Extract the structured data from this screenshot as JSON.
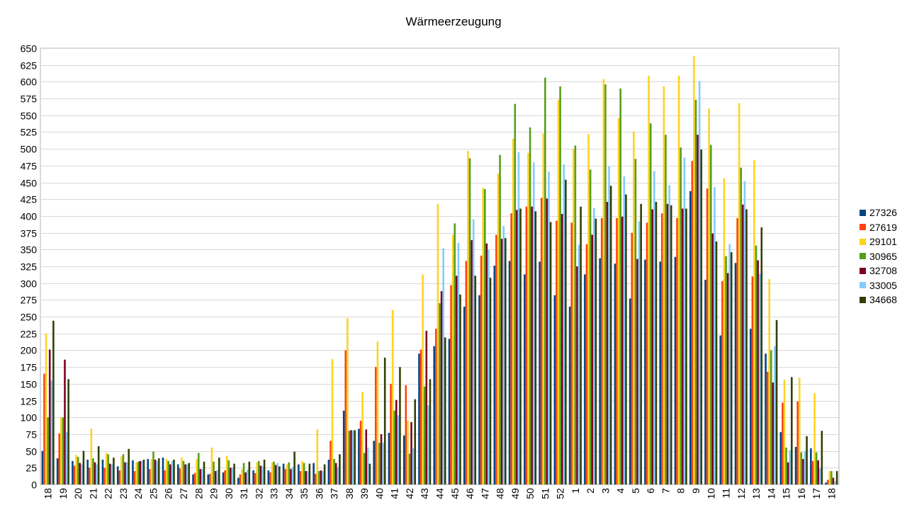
{
  "chart_data": {
    "type": "bar",
    "title": "Wärmeerzeugung",
    "xlabel": "",
    "ylabel": "",
    "ylim": [
      0,
      650
    ],
    "ytick_step": 25,
    "grid": true,
    "legend_position": "right",
    "categories": [
      "18",
      "19",
      "20",
      "21",
      "22",
      "23",
      "24",
      "25",
      "26",
      "27",
      "28",
      "29",
      "30",
      "31",
      "32",
      "33",
      "34",
      "35",
      "36",
      "37",
      "38",
      "39",
      "40",
      "41",
      "42",
      "43",
      "44",
      "45",
      "46",
      "47",
      "48",
      "49",
      "50",
      "51",
      "52",
      "1",
      "2",
      "3",
      "4",
      "5",
      "6",
      "7",
      "8",
      "9",
      "10",
      "11",
      "12",
      "13",
      "14",
      "15",
      "16",
      "17",
      "18"
    ],
    "series": [
      {
        "name": "27326",
        "color": "#004586",
        "values": [
          50,
          39,
          35,
          37,
          37,
          27,
          36,
          38,
          40,
          30,
          15,
          15,
          18,
          10,
          21,
          21,
          31,
          30,
          32,
          37,
          110,
          83,
          65,
          77,
          73,
          195,
          206,
          217,
          265,
          282,
          326,
          333,
          313,
          332,
          282,
          265,
          313,
          337,
          329,
          277,
          335,
          332,
          339,
          437,
          305,
          222,
          330,
          232,
          195,
          78,
          56,
          54,
          3
        ]
      },
      {
        "name": "27619",
        "color": "#ff420e",
        "values": [
          165,
          76,
          28,
          25,
          25,
          21,
          20,
          23,
          21,
          24,
          17,
          16,
          21,
          15,
          17,
          18,
          23,
          20,
          16,
          65,
          200,
          95,
          175,
          150,
          148,
          201,
          232,
          297,
          333,
          341,
          372,
          404,
          414,
          427,
          393,
          390,
          358,
          397,
          397,
          375,
          390,
          404,
          397,
          482,
          441,
          303,
          397,
          310,
          168,
          122,
          124,
          35,
          7
        ]
      },
      {
        "name": "29101",
        "color": "#ffd320",
        "values": [
          225,
          100,
          44,
          83,
          47,
          42,
          33,
          38,
          38,
          40,
          38,
          55,
          43,
          23,
          33,
          33,
          30,
          35,
          82,
          187,
          248,
          138,
          213,
          260,
          95,
          313,
          418,
          372,
          497,
          442,
          463,
          515,
          494,
          523,
          573,
          500,
          522,
          604,
          546,
          526,
          609,
          593,
          609,
          638,
          560,
          456,
          568,
          483,
          306,
          156,
          159,
          136,
          20
        ]
      },
      {
        "name": "30965",
        "color": "#579d1c",
        "values": [
          100,
          100,
          41,
          39,
          45,
          45,
          34,
          49,
          35,
          35,
          47,
          34,
          36,
          32,
          35,
          34,
          33,
          32,
          20,
          38,
          80,
          47,
          62,
          110,
          46,
          146,
          270,
          389,
          486,
          440,
          491,
          567,
          532,
          606,
          593,
          505,
          469,
          596,
          590,
          485,
          538,
          521,
          502,
          573,
          506,
          340,
          472,
          356,
          200,
          55,
          48,
          48,
          20
        ]
      },
      {
        "name": "32708",
        "color": "#7e0021",
        "values": [
          201,
          186,
          32,
          33,
          31,
          33,
          35,
          37,
          30,
          30,
          23,
          20,
          25,
          18,
          28,
          29,
          23,
          20,
          21,
          32,
          81,
          82,
          75,
          126,
          93,
          229,
          288,
          311,
          364,
          359,
          366,
          409,
          414,
          426,
          403,
          325,
          372,
          421,
          399,
          336,
          410,
          418,
          411,
          521,
          374,
          315,
          417,
          334,
          152,
          33,
          38,
          36,
          10
        ]
      },
      {
        "name": "33005",
        "color": "#83caff",
        "values": [
          155,
          78,
          30,
          30,
          30,
          33,
          35,
          35,
          35,
          30,
          23,
          22,
          25,
          22,
          27,
          32,
          26,
          20,
          20,
          26,
          80,
          55,
          62,
          103,
          54,
          118,
          352,
          360,
          395,
          350,
          385,
          495,
          480,
          466,
          477,
          357,
          412,
          474,
          459,
          392,
          467,
          446,
          487,
          601,
          443,
          358,
          452,
          314,
          206,
          51,
          50,
          24,
          5
        ]
      },
      {
        "name": "34668",
        "color": "#314004",
        "values": [
          244,
          157,
          50,
          57,
          40,
          53,
          37,
          39,
          37,
          32,
          34,
          40,
          31,
          34,
          37,
          27,
          49,
          31,
          30,
          45,
          81,
          31,
          189,
          175,
          127,
          157,
          219,
          283,
          311,
          308,
          367,
          411,
          407,
          391,
          454,
          414,
          396,
          445,
          432,
          418,
          421,
          416,
          411,
          499,
          362,
          346,
          410,
          383,
          245,
          160,
          72,
          80,
          20
        ]
      }
    ]
  }
}
